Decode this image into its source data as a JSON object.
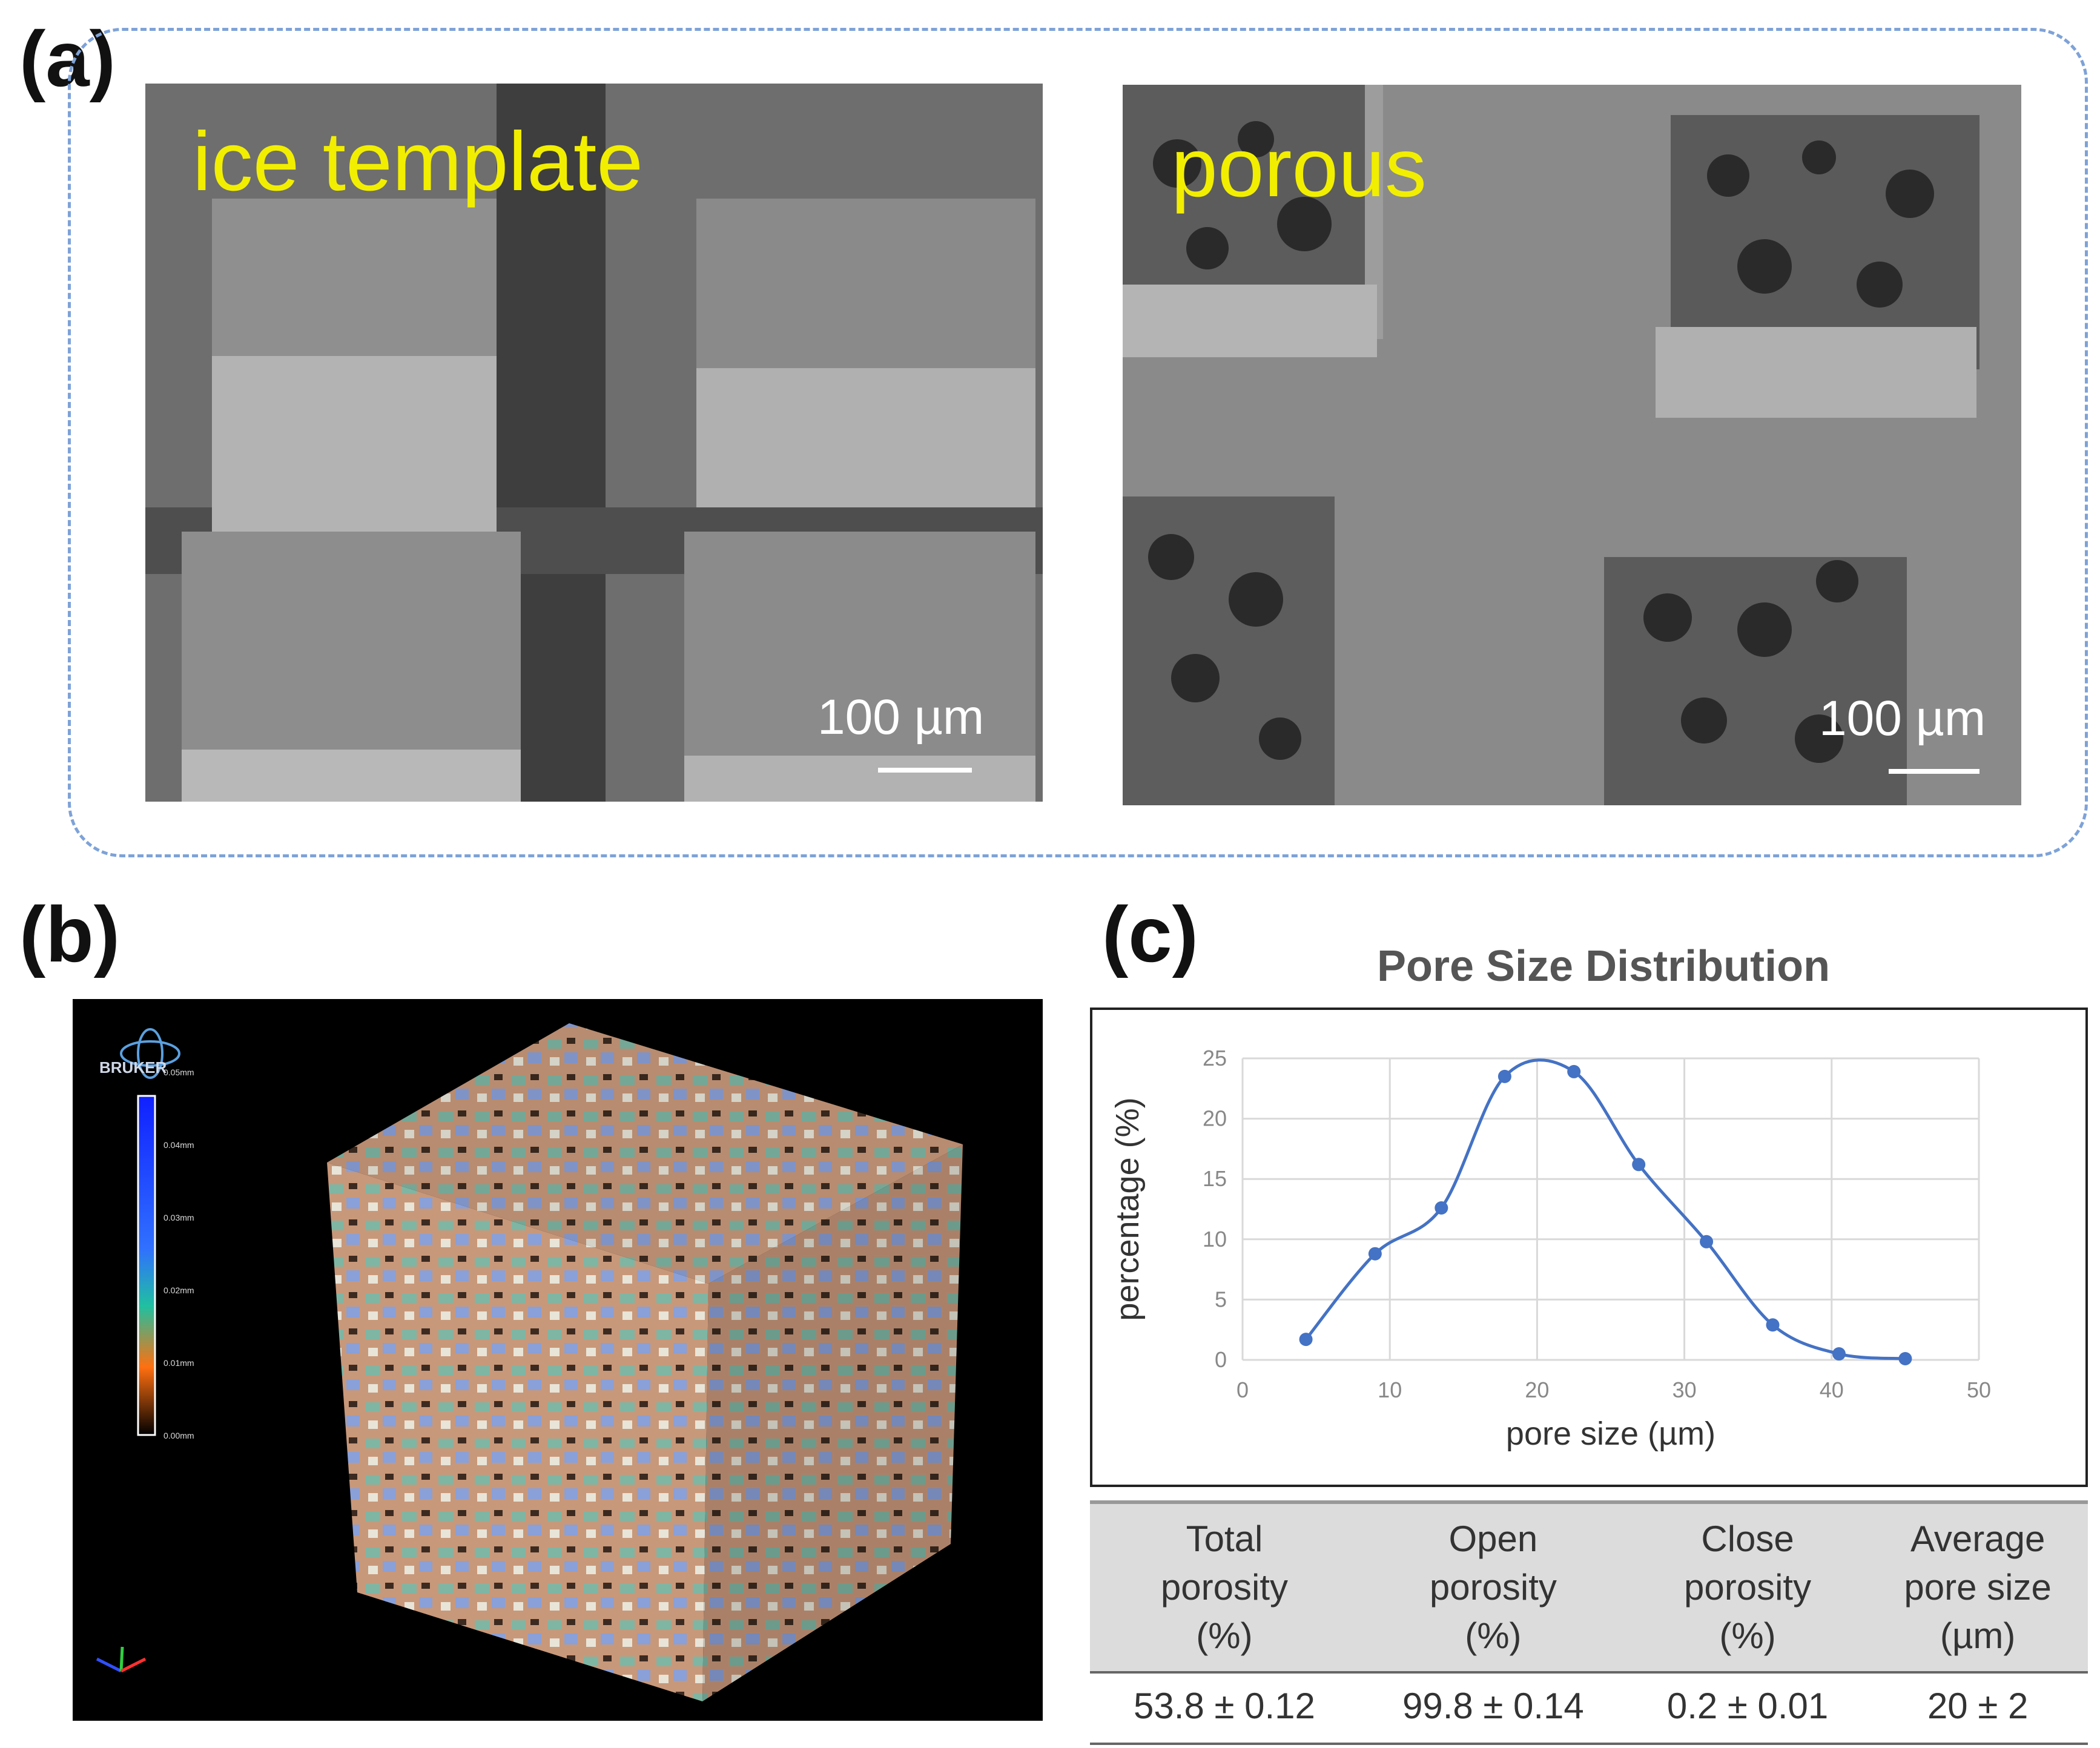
{
  "panels": {
    "a": {
      "label": "(a)",
      "left_image": {
        "label": "ice template",
        "scale": "100 µm"
      },
      "right_image": {
        "label": "porous",
        "scale": "100 µm"
      }
    },
    "b": {
      "label": "(b)",
      "logo_text": "BRUKER",
      "colorbar_ticks": [
        "0.05mm",
        "0.04mm",
        "0.03mm",
        "0.02mm",
        "0.01mm",
        "0.00mm"
      ]
    },
    "c": {
      "label": "(c)",
      "table": {
        "headers": [
          [
            "Total",
            "porosity",
            "(%)"
          ],
          [
            "Open",
            "porosity",
            "(%)"
          ],
          [
            "Close",
            "porosity",
            "(%)"
          ],
          [
            "Average",
            "pore size",
            "(µm)"
          ]
        ],
        "values": [
          "53.8 ± 0.12",
          "99.8 ± 0.14",
          "0.2 ± 0.01",
          "20 ± 2"
        ]
      }
    }
  },
  "chart_data": {
    "type": "line",
    "title": "Pore Size Distribution",
    "xlabel": "pore size (µm)",
    "ylabel": "percentage (%)",
    "xlim": [
      0,
      50
    ],
    "ylim": [
      0,
      25
    ],
    "xticks": [
      0,
      10,
      20,
      30,
      40,
      50
    ],
    "yticks": [
      0,
      5,
      10,
      15,
      20,
      25
    ],
    "grid": true,
    "series": [
      {
        "x": [
          4.3,
          9,
          13.5,
          17.8,
          22.5,
          26.9,
          31.5,
          36,
          40.5,
          45
        ],
        "values": [
          1.7,
          8.8,
          12.6,
          23.5,
          23.9,
          16.2,
          9.8,
          2.9,
          0.5,
          0.1
        ],
        "color": "#4472c4"
      }
    ]
  }
}
